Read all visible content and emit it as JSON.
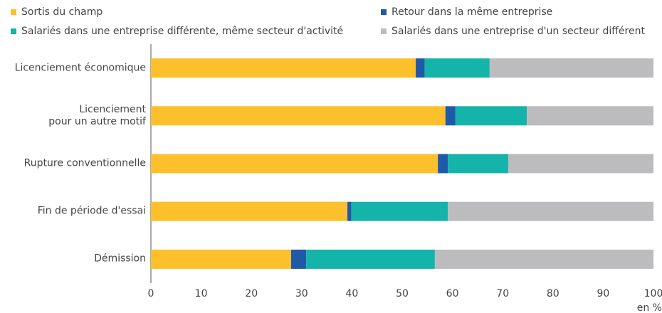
{
  "chart_data": {
    "type": "stacked_barh",
    "categories": [
      "Licenciement économique",
      "Licenciement\npour un autre motif",
      "Rupture conventionnelle",
      "Fin de période d'essai",
      "Démission"
    ],
    "series": [
      {
        "name": "Sortis du champ",
        "color": "#fcc02c",
        "values": [
          52.7,
          58.6,
          57.1,
          39.1,
          27.9
        ]
      },
      {
        "name": "Retour dans la même entreprise",
        "color": "#1f5aa8",
        "values": [
          1.8,
          2.0,
          2.0,
          0.8,
          3.0
        ]
      },
      {
        "name": "Salariés dans une entreprise différente, même secteur d'activité",
        "color": "#14b4aa",
        "values": [
          12.9,
          14.2,
          12.0,
          19.2,
          25.6
        ]
      },
      {
        "name": "Salariés dans une entreprise d'un secteur différent",
        "color": "#bcbcbe",
        "values": [
          32.6,
          25.2,
          28.9,
          40.9,
          43.5
        ]
      }
    ],
    "xlim": [
      0,
      100
    ],
    "xticks": [
      0,
      10,
      20,
      30,
      40,
      50,
      60,
      70,
      80,
      90,
      100
    ],
    "x_label": "en %"
  }
}
